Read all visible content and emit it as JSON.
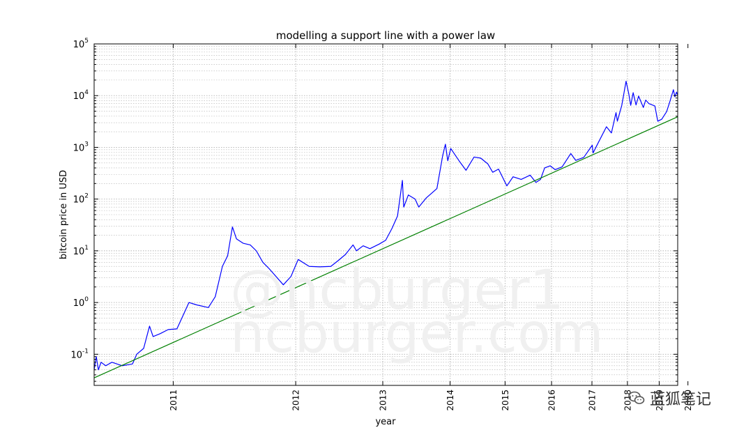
{
  "watermark": {
    "line1": "@ncburger1",
    "line2": "ncburger.com"
  },
  "wechat_badge": {
    "icon": "wechat-bubbles-icon",
    "text": "蓝狐笔记"
  },
  "colors": {
    "price": "#0000ff",
    "support": "#008000",
    "grid": "#b0b0b0",
    "axis": "#000000"
  },
  "chart_data": {
    "type": "line",
    "title": "modelling a support line with a power law",
    "xlabel": "year",
    "ylabel": "bitcoin price in USD",
    "x_tick_labels": [
      "2011",
      "2012",
      "2013",
      "2014",
      "2015",
      "2016",
      "2017",
      "2018",
      "2019",
      "2020"
    ],
    "y_scale": "log",
    "y_tick_labels": [
      {
        "base": "10",
        "exp": "-1"
      },
      {
        "base": "10",
        "exp": "0"
      },
      {
        "base": "10",
        "exp": "1"
      },
      {
        "base": "10",
        "exp": "2"
      },
      {
        "base": "10",
        "exp": "3"
      },
      {
        "base": "10",
        "exp": "4"
      },
      {
        "base": "10",
        "exp": "5"
      }
    ],
    "ylim": [
      0.025,
      100000
    ],
    "xlim": [
      "2010-07-17",
      "2019-08-20"
    ],
    "x_scale": "power-law time axis (log of days since genesis)",
    "grid": true,
    "series": [
      {
        "color": "#0000ff",
        "points": [
          [
            "2010-07-17",
            0.05
          ],
          [
            "2010-07-21",
            0.09
          ],
          [
            "2010-07-25",
            0.05
          ],
          [
            "2010-07-30",
            0.07
          ],
          [
            "2010-08-08",
            0.06
          ],
          [
            "2010-08-20",
            0.07
          ],
          [
            "2010-09-10",
            0.06
          ],
          [
            "2010-10-01",
            0.065
          ],
          [
            "2010-10-10",
            0.1
          ],
          [
            "2010-10-25",
            0.13
          ],
          [
            "2010-11-07",
            0.35
          ],
          [
            "2010-11-15",
            0.22
          ],
          [
            "2010-12-01",
            0.25
          ],
          [
            "2010-12-20",
            0.3
          ],
          [
            "2011-01-10",
            0.31
          ],
          [
            "2011-02-09",
            1.0
          ],
          [
            "2011-03-01",
            0.9
          ],
          [
            "2011-04-01",
            0.8
          ],
          [
            "2011-04-20",
            1.3
          ],
          [
            "2011-05-10",
            5.0
          ],
          [
            "2011-05-25",
            8.0
          ],
          [
            "2011-06-08",
            29.0
          ],
          [
            "2011-06-20",
            17.0
          ],
          [
            "2011-07-10",
            14.0
          ],
          [
            "2011-08-01",
            13.0
          ],
          [
            "2011-08-20",
            10.0
          ],
          [
            "2011-09-10",
            6.0
          ],
          [
            "2011-10-01",
            4.5
          ],
          [
            "2011-11-18",
            2.2
          ],
          [
            "2011-12-15",
            3.2
          ],
          [
            "2012-01-10",
            6.8
          ],
          [
            "2012-02-20",
            5.0
          ],
          [
            "2012-04-01",
            4.9
          ],
          [
            "2012-05-15",
            5.0
          ],
          [
            "2012-06-15",
            6.5
          ],
          [
            "2012-07-15",
            8.5
          ],
          [
            "2012-08-17",
            13.0
          ],
          [
            "2012-09-01",
            10.0
          ],
          [
            "2012-10-01",
            12.5
          ],
          [
            "2012-11-01",
            11.0
          ],
          [
            "2012-12-15",
            13.5
          ],
          [
            "2013-01-15",
            16.0
          ],
          [
            "2013-02-15",
            27.0
          ],
          [
            "2013-03-15",
            47.0
          ],
          [
            "2013-04-09",
            230.0
          ],
          [
            "2013-04-16",
            70.0
          ],
          [
            "2013-05-10",
            120.0
          ],
          [
            "2013-06-15",
            100.0
          ],
          [
            "2013-07-05",
            70.0
          ],
          [
            "2013-08-15",
            105.0
          ],
          [
            "2013-09-15",
            130.0
          ],
          [
            "2013-10-15",
            160.0
          ],
          [
            "2013-11-18",
            700.0
          ],
          [
            "2013-12-04",
            1150.0
          ],
          [
            "2013-12-18",
            550.0
          ],
          [
            "2014-01-05",
            950.0
          ],
          [
            "2014-02-25",
            550.0
          ],
          [
            "2014-04-10",
            360.0
          ],
          [
            "2014-06-01",
            650.0
          ],
          [
            "2014-07-15",
            620.0
          ],
          [
            "2014-09-01",
            480.0
          ],
          [
            "2014-10-05",
            330.0
          ],
          [
            "2014-11-15",
            380.0
          ],
          [
            "2015-01-14",
            180.0
          ],
          [
            "2015-03-01",
            270.0
          ],
          [
            "2015-05-01",
            240.0
          ],
          [
            "2015-07-10",
            290.0
          ],
          [
            "2015-08-25",
            210.0
          ],
          [
            "2015-10-01",
            240.0
          ],
          [
            "2015-11-04",
            400.0
          ],
          [
            "2015-12-20",
            440.0
          ],
          [
            "2016-02-01",
            370.0
          ],
          [
            "2016-04-01",
            420.0
          ],
          [
            "2016-06-17",
            760.0
          ],
          [
            "2016-08-01",
            560.0
          ],
          [
            "2016-10-15",
            640.0
          ],
          [
            "2017-01-04",
            1100.0
          ],
          [
            "2017-01-12",
            780.0
          ],
          [
            "2017-03-01",
            1200.0
          ],
          [
            "2017-05-25",
            2500.0
          ],
          [
            "2017-07-15",
            1900.0
          ],
          [
            "2017-09-01",
            4700.0
          ],
          [
            "2017-09-15",
            3200.0
          ],
          [
            "2017-11-01",
            6500.0
          ],
          [
            "2017-12-17",
            19000.0
          ],
          [
            "2018-01-15",
            11000.0
          ],
          [
            "2018-02-06",
            6500.0
          ],
          [
            "2018-03-05",
            11400.0
          ],
          [
            "2018-04-06",
            6600.0
          ],
          [
            "2018-05-05",
            9800.0
          ],
          [
            "2018-06-28",
            5900.0
          ],
          [
            "2018-07-25",
            8200.0
          ],
          [
            "2018-09-01",
            7000.0
          ],
          [
            "2018-11-10",
            6300.0
          ],
          [
            "2018-12-15",
            3200.0
          ],
          [
            "2019-02-01",
            3500.0
          ],
          [
            "2019-04-02",
            4900.0
          ],
          [
            "2019-05-15",
            7900.0
          ],
          [
            "2019-06-26",
            13000.0
          ],
          [
            "2019-07-15",
            9500.0
          ],
          [
            "2019-08-05",
            11700.0
          ],
          [
            "2019-08-20",
            10200.0
          ]
        ]
      },
      {
        "color": "#008000",
        "points": [
          [
            "2010-07-17",
            0.035
          ],
          [
            "2019-08-20",
            3900.0
          ]
        ]
      }
    ]
  }
}
